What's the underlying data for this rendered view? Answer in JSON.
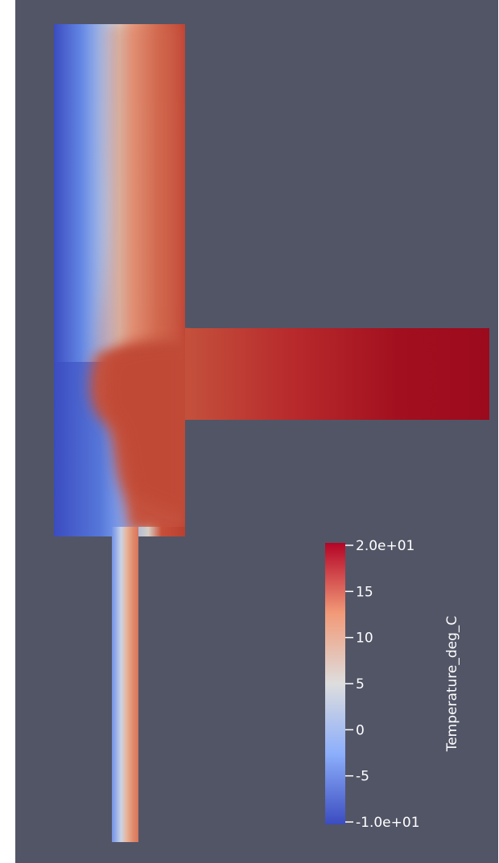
{
  "viewport": {
    "background": "#525566"
  },
  "colormap": {
    "name": "Cool to Warm",
    "stops": [
      "#3b4cc0",
      "#8caefb",
      "#dddddd",
      "#f29a78",
      "#b40426"
    ],
    "field_title": "Temperature_deg_C",
    "range": [
      -10,
      20
    ],
    "tick_labels": [
      "2.0e+01",
      "15",
      "10",
      "5",
      "0",
      "-5",
      "-1.0e+01"
    ]
  }
}
